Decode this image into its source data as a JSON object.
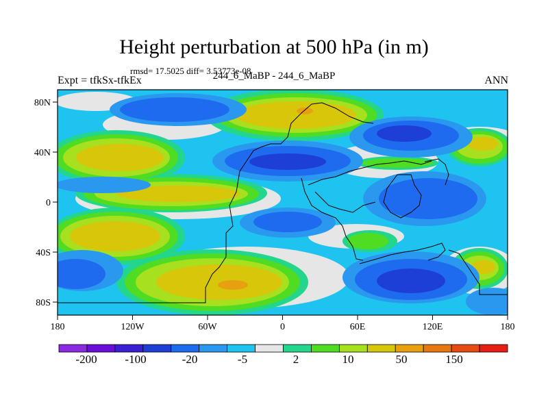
{
  "header": {
    "title": "Height perturbation at 500 hPa (in m)",
    "subtitle": "rmsd= 17.5025 diff= 3.53773e-08",
    "left_label": "Expt = tfkSx-tfkEx",
    "center_label": "244_6_MaBP - 244_6_MaBP",
    "right_label": "ANN"
  },
  "map": {
    "projection": "cylindrical equidistant",
    "lon_range": [
      -180,
      180
    ],
    "lat_range": [
      -90,
      90
    ],
    "x_tick_labels": [
      "180",
      "120W",
      "60W",
      "0",
      "60E",
      "120E",
      "180"
    ],
    "y_tick_labels": [
      "80N",
      "40N",
      "0",
      "40S",
      "80S"
    ]
  },
  "colorbar": {
    "colors": [
      "#8a2be2",
      "#6a0fd9",
      "#3b1fd4",
      "#1e3fd6",
      "#1f6bef",
      "#2b98f0",
      "#1ec4ef",
      "#e6e6e6",
      "#23d68c",
      "#4fdc23",
      "#a6e01e",
      "#d8c60a",
      "#e6a010",
      "#e67812",
      "#e64b14",
      "#e61e14"
    ],
    "labels": [
      "-200",
      "-100",
      "-20",
      "-5",
      "2",
      "10",
      "50",
      "150"
    ]
  }
}
